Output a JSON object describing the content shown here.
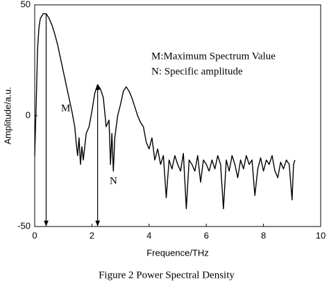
{
  "chart_data": {
    "type": "line",
    "title": "Figure 2 Power Spectral Density",
    "xlabel": "Frequence/THz",
    "ylabel": "Amplitude/a.u.",
    "annotations": [
      "M:Maximum Spectrum Value",
      "N: Specific amplitude"
    ],
    "markers": [
      {
        "label": "M",
        "x": 0.4,
        "y": 46
      },
      {
        "label": "N",
        "x": 2.2,
        "y": 14
      }
    ],
    "color": "#000000",
    "x": [
      0,
      0.05,
      0.1,
      0.15,
      0.2,
      0.3,
      0.4,
      0.5,
      0.6,
      0.7,
      0.8,
      0.9,
      1.0,
      1.1,
      1.2,
      1.3,
      1.4,
      1.45,
      1.5,
      1.55,
      1.6,
      1.65,
      1.7,
      1.8,
      1.9,
      2.0,
      2.1,
      2.2,
      2.3,
      2.4,
      2.5,
      2.6,
      2.65,
      2.7,
      2.75,
      2.8,
      2.9,
      3.0,
      3.1,
      3.2,
      3.3,
      3.4,
      3.5,
      3.6,
      3.7,
      3.8,
      3.9,
      4.0,
      4.1,
      4.2,
      4.3,
      4.4,
      4.5,
      4.6,
      4.7,
      4.8,
      4.9,
      5.0,
      5.1,
      5.2,
      5.3,
      5.4,
      5.5,
      5.6,
      5.7,
      5.8,
      5.9,
      6.0,
      6.1,
      6.2,
      6.3,
      6.4,
      6.5,
      6.6,
      6.7,
      6.8,
      6.9,
      7.0,
      7.1,
      7.2,
      7.3,
      7.4,
      7.5,
      7.6,
      7.7,
      7.8,
      7.9,
      8.0,
      8.1,
      8.2,
      8.3,
      8.4,
      8.5,
      8.6,
      8.7,
      8.8,
      8.9,
      9.0,
      9.05,
      9.1
    ],
    "values": [
      -18,
      5,
      30,
      40,
      44,
      46,
      46,
      44,
      41,
      37,
      32,
      26,
      20,
      14,
      8,
      2,
      -5,
      -12,
      -18,
      -10,
      -22,
      -14,
      -20,
      -8,
      -5,
      2,
      10,
      14,
      12,
      8,
      -5,
      -2,
      -22,
      -8,
      -25,
      -10,
      0,
      5,
      11,
      13,
      11,
      8,
      4,
      0,
      -3,
      -5,
      -12,
      -15,
      -10,
      -20,
      -15,
      -22,
      -18,
      -37,
      -20,
      -24,
      -18,
      -22,
      -25,
      -17,
      -42,
      -20,
      -22,
      -25,
      -18,
      -30,
      -20,
      -22,
      -25,
      -20,
      -24,
      -18,
      -22,
      -42,
      -20,
      -25,
      -18,
      -22,
      -28,
      -20,
      -24,
      -18,
      -22,
      -20,
      -36,
      -24,
      -19,
      -25,
      -20,
      -22,
      -18,
      -25,
      -28,
      -21,
      -24,
      -20,
      -22,
      -38,
      -22,
      -20
    ],
    "xlim": [
      0,
      10
    ],
    "ylim": [
      -50,
      50
    ],
    "xticks": [
      0,
      2,
      4,
      6,
      8,
      10
    ],
    "yticks": [
      -50,
      0,
      50
    ]
  }
}
